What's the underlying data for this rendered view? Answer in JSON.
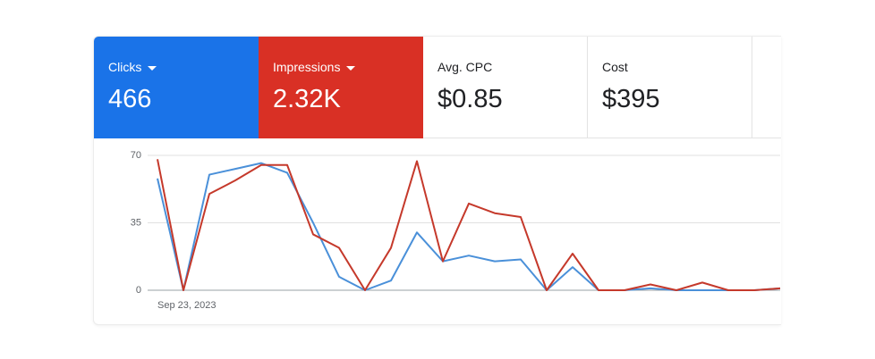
{
  "cards": [
    {
      "label": "Clicks",
      "value": "466"
    },
    {
      "label": "Impressions",
      "value": "2.32K"
    },
    {
      "label": "Avg. CPC",
      "value": "$0.85"
    },
    {
      "label": "Cost",
      "value": "$395"
    }
  ],
  "chart_data": {
    "type": "line",
    "categories": [
      "Sep 23, 2023",
      null,
      null,
      null,
      null,
      null,
      null,
      null,
      null,
      null,
      null,
      null,
      null,
      null,
      null,
      null,
      null,
      null,
      null,
      null,
      null,
      null,
      null,
      null,
      null
    ],
    "series": [
      {
        "color": "#4a90d9",
        "values": [
          58,
          0,
          60,
          63,
          66,
          61,
          35,
          7,
          0,
          5,
          30,
          15,
          18,
          15,
          16,
          0,
          12,
          0,
          0,
          1,
          0,
          0,
          0,
          0,
          1
        ]
      },
      {
        "color": "#c5392b",
        "values": [
          68,
          0,
          50,
          57,
          65,
          65,
          29,
          22,
          0,
          22,
          67,
          15,
          45,
          40,
          38,
          0,
          19,
          0,
          0,
          3,
          0,
          4,
          0,
          0,
          1
        ]
      }
    ],
    "ylim": [
      0,
      70
    ],
    "yticks": [
      0,
      35,
      70
    ],
    "grid": true
  }
}
